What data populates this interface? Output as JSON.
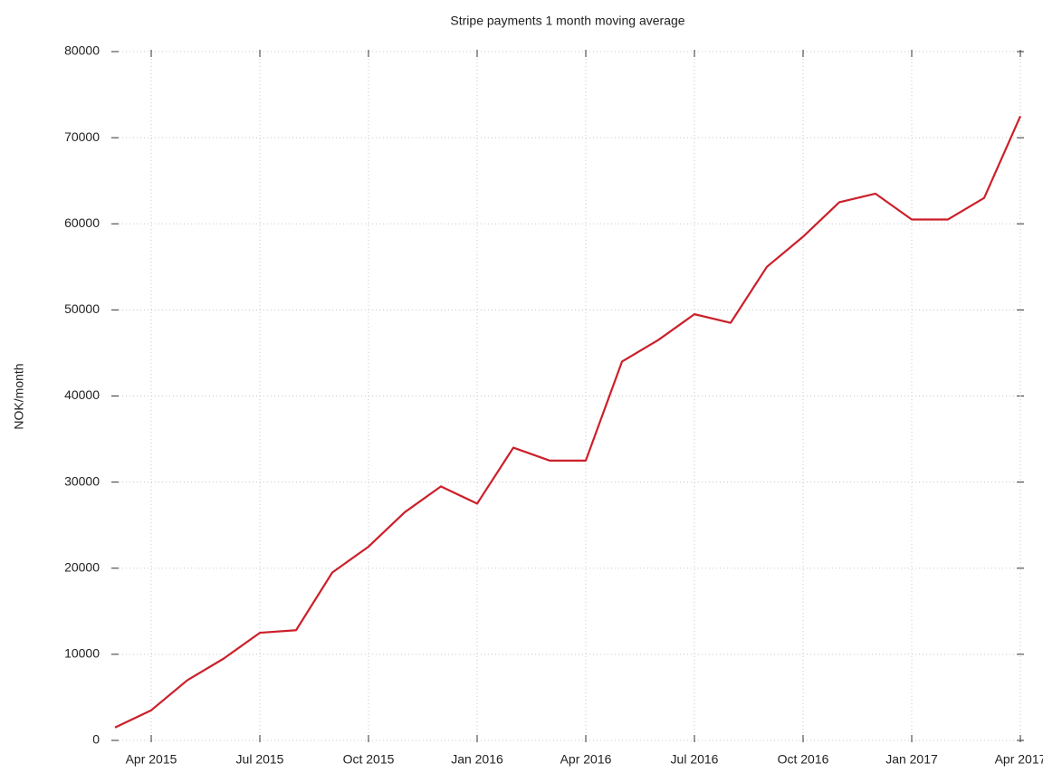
{
  "chart_data": {
    "type": "line",
    "title": "Stripe payments 1 month moving average",
    "y_label": "NOK/month",
    "x": [
      "2015-03",
      "2015-04",
      "2015-05",
      "2015-06",
      "2015-07",
      "2015-08",
      "2015-09",
      "2015-10",
      "2015-11",
      "2015-12",
      "2016-01",
      "2016-02",
      "2016-03",
      "2016-04",
      "2016-05",
      "2016-06",
      "2016-07",
      "2016-08",
      "2016-09",
      "2016-10",
      "2016-11",
      "2016-12",
      "2017-01",
      "2017-02",
      "2017-03",
      "2017-04"
    ],
    "series": [
      {
        "name": "NOK/month",
        "color": "#cc1f2a",
        "values": [
          1500,
          3500,
          7000,
          9500,
          12500,
          12800,
          19500,
          22500,
          26500,
          29500,
          27500,
          34000,
          32500,
          32500,
          44000,
          46500,
          49500,
          48500,
          55000,
          58500,
          62500,
          63500,
          60500,
          60500,
          63000,
          72500
        ]
      }
    ],
    "xlim": [
      "2015-03",
      "2017-04"
    ],
    "xticks": [
      {
        "value": "2015-04",
        "label": "Apr 2015"
      },
      {
        "value": "2015-07",
        "label": "Jul 2015"
      },
      {
        "value": "2015-10",
        "label": "Oct 2015"
      },
      {
        "value": "2016-01",
        "label": "Jan 2016"
      },
      {
        "value": "2016-04",
        "label": "Apr 2016"
      },
      {
        "value": "2016-07",
        "label": "Jul 2016"
      },
      {
        "value": "2016-10",
        "label": "Oct 2016"
      },
      {
        "value": "2017-01",
        "label": "Jan 2017"
      },
      {
        "value": "2017-04",
        "label": "Apr 2017"
      }
    ],
    "ylim": [
      0,
      80000
    ],
    "yticks": [
      0,
      10000,
      20000,
      30000,
      40000,
      50000,
      60000,
      70000,
      80000
    ],
    "grid": true
  }
}
